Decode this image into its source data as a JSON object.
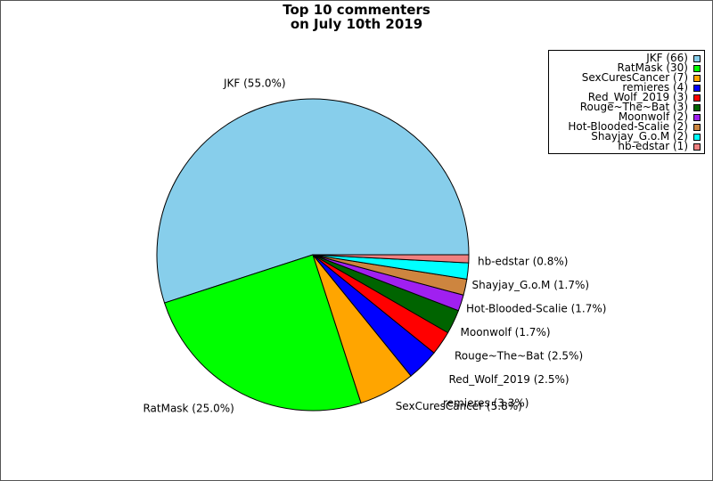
{
  "chart_data": {
    "type": "pie",
    "title_lines": [
      "Top 10 commenters",
      "on July 10th 2019"
    ],
    "legend_placement": "top-right",
    "slices": [
      {
        "name": "JKF",
        "value": 66,
        "percent_label": "JKF (55.0%)",
        "legend_label": "JKF (66)",
        "color": "#87ceeb"
      },
      {
        "name": "RatMask",
        "value": 30,
        "percent_label": "RatMask (25.0%)",
        "legend_label": "RatMask (30)",
        "color": "#00ff00"
      },
      {
        "name": "SexCuresCancer",
        "value": 7,
        "percent_label": "SexCuresCancer (5.8%)",
        "legend_label": "SexCuresCancer (7)",
        "color": "#ffa500"
      },
      {
        "name": "remieres",
        "value": 4,
        "percent_label": "remieres (3.3%)",
        "legend_label": "remieres (4)",
        "color": "#0000ff"
      },
      {
        "name": "Red_Wolf_2019",
        "value": 3,
        "percent_label": "Red_Wolf_2019 (2.5%)",
        "legend_label": "Red_Wolf_2019 (3)",
        "color": "#ff0000"
      },
      {
        "name": "Rouge~The~Bat",
        "value": 3,
        "percent_label": "Rouge~The~Bat (2.5%)",
        "legend_label": "Rouge~The~Bat (3)",
        "color": "#006400"
      },
      {
        "name": "Moonwolf",
        "value": 2,
        "percent_label": "Moonwolf (1.7%)",
        "legend_label": "Moonwolf (2)",
        "color": "#a020f0"
      },
      {
        "name": "Hot-Blooded-Scalie",
        "value": 2,
        "percent_label": "Hot-Blooded-Scalie (1.7%)",
        "legend_label": "Hot-Blooded-Scalie (2)",
        "color": "#cd853f"
      },
      {
        "name": "Shayjay_G.o.M",
        "value": 2,
        "percent_label": "Shayjay_G.o.M (1.7%)",
        "legend_label": "Shayjay_G.o.M (2)",
        "color": "#00ffff"
      },
      {
        "name": "hb-edstar",
        "value": 1,
        "percent_label": "hb-edstar (0.8%)",
        "legend_label": "hb-edstar (1)",
        "color": "#f08080"
      }
    ]
  }
}
